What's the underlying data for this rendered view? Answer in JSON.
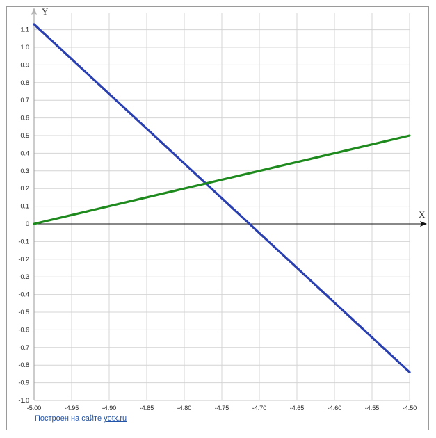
{
  "chart_data": {
    "type": "line",
    "xlabel": "X",
    "ylabel": "Y",
    "xlim": [
      -5.0,
      -4.5
    ],
    "ylim": [
      -1.0,
      1.15
    ],
    "x_ticks": [
      -5.0,
      -4.95,
      -4.9,
      -4.85,
      -4.8,
      -4.75,
      -4.7,
      -4.65,
      -4.6,
      -4.55,
      -4.5
    ],
    "x_tick_labels": [
      "-5.00",
      "-4.95",
      "-4.90",
      "-4.85",
      "-4.80",
      "-4.75",
      "-4.70",
      "-4.65",
      "-4.60",
      "-4.55",
      "-4.50"
    ],
    "y_ticks": [
      1.1,
      1.0,
      0.9,
      0.8,
      0.7,
      0.6,
      0.5,
      0.4,
      0.3,
      0.2,
      0.1,
      0,
      -0.1,
      -0.2,
      -0.3,
      -0.4,
      -0.5,
      -0.6,
      -0.7,
      -0.8,
      -0.9,
      -1.0
    ],
    "y_tick_labels": [
      "1.1",
      "1.0",
      "0.9",
      "0.8",
      "0.7",
      "0.6",
      "0.5",
      "0.4",
      "0.3",
      "0.2",
      "0.1",
      "0",
      "-0.1",
      "-0.2",
      "-0.3",
      "-0.4",
      "-0.5",
      "-0.6",
      "-0.7",
      "-0.8",
      "-0.9",
      "-1.0"
    ],
    "grid": true,
    "series": [
      {
        "color": "#2a3fb0",
        "x": [
          -5.0,
          -4.5
        ],
        "y": [
          1.13,
          -0.84
        ]
      },
      {
        "color": "#1e8a1e",
        "x": [
          -5.0,
          -4.5
        ],
        "y": [
          0.0,
          0.5
        ]
      }
    ]
  },
  "footer": {
    "prefix": "Построен на сайте ",
    "link": "yotx.ru"
  }
}
